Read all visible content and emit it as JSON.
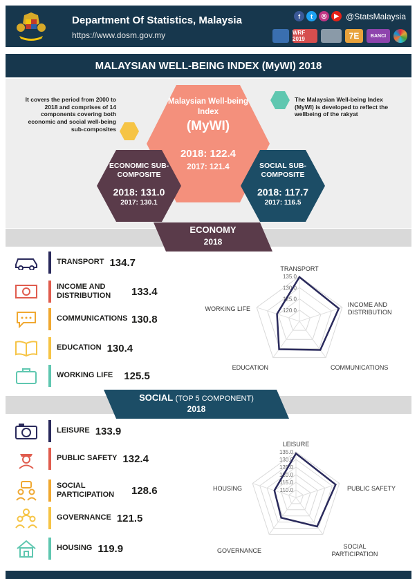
{
  "header": {
    "org_name": "Department Of Statistics, Malaysia",
    "url": "https://www.dosm.gov.my",
    "social_handle": "@StatsMalaysia",
    "social_icons": [
      "facebook-icon",
      "twitter-icon",
      "instagram-icon",
      "youtube-icon"
    ],
    "logo_texts": [
      "WRF 2019",
      "7E",
      "BANCI"
    ]
  },
  "title": "MALAYSIAN WELL-BEING INDEX (MyWI) 2018",
  "hero": {
    "left_note": "It covers the period from 2000 to 2018 and comprises of 14 components covering both economic and social well-being sub-composites",
    "right_note": "The Malaysian Well-being Index (MyWI) is developed to reflect the wellbeing of the rakyat",
    "main_label": "Malaysian Well-being Index",
    "main_abbr": "(MyWI)",
    "main_2018": "2018: 122.4",
    "main_2017": "2017: 121.4",
    "economic": {
      "label": "ECONOMIC SUB-COMPOSITE",
      "v2018": "2018: 131.0",
      "v2017": "2017: 130.1"
    },
    "social": {
      "label": "SOCIAL SUB-COMPOSITE",
      "v2018": "2018: 117.7",
      "v2017": "2017: 116.5"
    }
  },
  "colors": {
    "navy": "#17374d",
    "salmon": "#f4907c",
    "plum": "#5a3b4a",
    "teal": "#1c4d66",
    "yellow": "#f6c445",
    "mint": "#5fc7b0"
  },
  "economy": {
    "banner_title": "ECONOMY",
    "banner_year": "2018",
    "items": [
      {
        "icon": "car-icon",
        "label": "TRANSPORT",
        "value": "134.7",
        "bar": "#2a2a5c"
      },
      {
        "icon": "money-icon",
        "label": "INCOME AND DISTRIBUTION",
        "value": "133.4",
        "bar": "#e05c4e"
      },
      {
        "icon": "chat-bubble-icon",
        "label": "COMMUNICATIONS",
        "value": "130.8",
        "bar": "#f0a830"
      },
      {
        "icon": "book-icon",
        "label": "EDUCATION",
        "value": "130.4",
        "bar": "#f6c445"
      },
      {
        "icon": "briefcase-icon",
        "label": "WORKING LIFE",
        "value": "125.5",
        "bar": "#5fc7b0"
      }
    ]
  },
  "social": {
    "banner_title": "SOCIAL",
    "banner_sub": "(TOP 5 COMPONENT)",
    "banner_year": "2018",
    "items": [
      {
        "icon": "camera-icon",
        "label": "LEISURE",
        "value": "133.9",
        "bar": "#2a2a5c"
      },
      {
        "icon": "police-icon",
        "label": "PUBLIC SAFETY",
        "value": "132.4",
        "bar": "#e05c4e"
      },
      {
        "icon": "people-icon",
        "label": "SOCIAL PARTICIPATION",
        "value": "128.6",
        "bar": "#f0a830"
      },
      {
        "icon": "group-icon",
        "label": "GOVERNANCE",
        "value": "121.5",
        "bar": "#f6c445"
      },
      {
        "icon": "house-icon",
        "label": "HOUSING",
        "value": "119.9",
        "bar": "#5fc7b0"
      }
    ]
  },
  "chart_data": [
    {
      "type": "radar",
      "categories": [
        "TRANSPORT",
        "INCOME AND DISTRIBUTION",
        "COMMUNICATIONS",
        "EDUCATION",
        "WORKING LIFE"
      ],
      "values": [
        134.7,
        133.4,
        130.8,
        130.4,
        125.5
      ],
      "ticks": [
        "120.0",
        "125.0",
        "130.0",
        "135.0"
      ],
      "range": [
        115,
        135
      ]
    },
    {
      "type": "radar",
      "categories": [
        "LEISURE",
        "PUBLIC SAFETY",
        "SOCIAL PARTICIPATION",
        "GOVERNANCE",
        "HOUSING"
      ],
      "values": [
        133.9,
        132.4,
        128.6,
        121.5,
        119.9
      ],
      "ticks": [
        "110.0",
        "115.0",
        "120.0",
        "125.0",
        "130.0",
        "135.0"
      ],
      "range": [
        105,
        135
      ]
    }
  ]
}
